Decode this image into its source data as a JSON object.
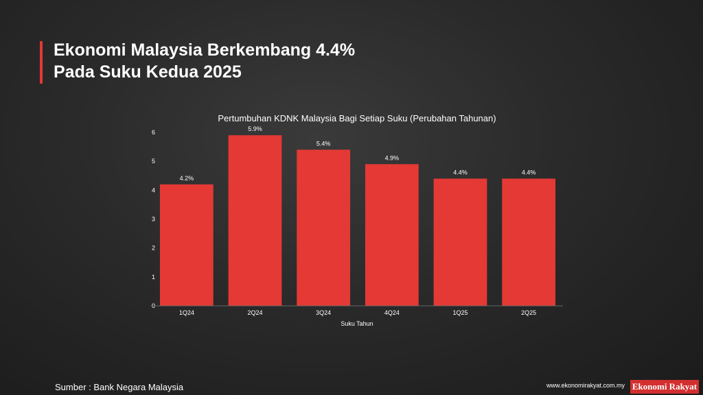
{
  "headline": {
    "line1": "Ekonomi Malaysia Berkembang 4.4%",
    "line2": "Pada Suku Kedua 2025"
  },
  "colors": {
    "accent": "#e53935",
    "bar": "#e53935",
    "background": "#2a2a2a",
    "text": "#ffffff"
  },
  "chart_data": {
    "type": "bar",
    "title": "Pertumbuhan KDNK Malaysia Bagi Setiap Suku (Perubahan Tahunan)",
    "xlabel": "Suku Tahun",
    "ylabel": "",
    "categories": [
      "1Q24",
      "2Q24",
      "3Q24",
      "4Q24",
      "1Q25",
      "2Q25"
    ],
    "values": [
      4.2,
      5.9,
      5.4,
      4.9,
      4.4,
      4.4
    ],
    "data_labels": [
      "4.2%",
      "5.9%",
      "5.4%",
      "4.9%",
      "4.4%",
      "4.4%"
    ],
    "ylim": [
      0,
      6
    ],
    "yticks": [
      0,
      1,
      2,
      3,
      4,
      5,
      6
    ],
    "grid": false,
    "legend": "none"
  },
  "footer": {
    "source": "Sumber : Bank Negara Malaysia",
    "url": "www.ekonomirakyat.com.my",
    "brand": "Ekonomi Rakyat"
  }
}
